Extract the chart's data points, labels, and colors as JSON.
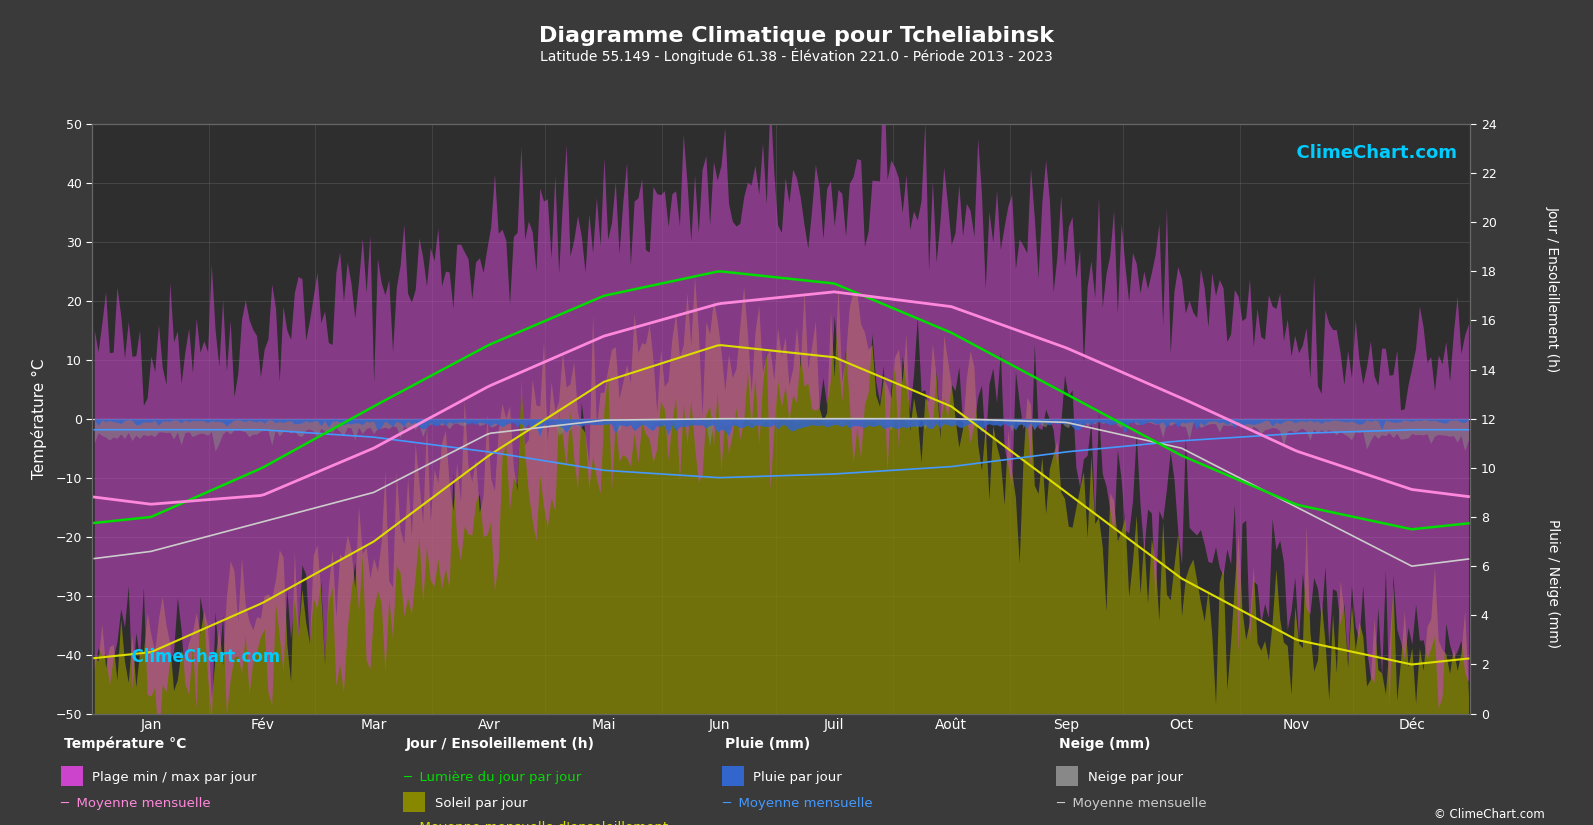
{
  "title": "Diagramme Climatique pour Tcheliabinsk",
  "subtitle": "Latitude 55.149 - Longitude 61.38 - Élévation 221.0 - Période 2013 - 2023",
  "bg_color": "#3a3a3a",
  "plot_bg_color": "#2e2e2e",
  "months": [
    "Jan",
    "Fév",
    "Mar",
    "Avr",
    "Mai",
    "Jun",
    "Juil",
    "Août",
    "Sep",
    "Oct",
    "Nov",
    "Déc"
  ],
  "temp_ylim": [
    -50,
    50
  ],
  "temp_mean_monthly": [
    -14.5,
    -13.0,
    -5.0,
    5.5,
    14.0,
    19.5,
    21.5,
    19.0,
    12.0,
    3.5,
    -5.5,
    -12.0
  ],
  "temp_max_monthly": [
    14.0,
    16.0,
    22.0,
    30.0,
    35.0,
    38.0,
    38.0,
    36.0,
    30.0,
    22.0,
    12.0,
    10.0
  ],
  "temp_min_monthly": [
    -42.0,
    -40.0,
    -32.0,
    -16.0,
    -4.0,
    1.0,
    5.0,
    3.0,
    -4.0,
    -18.0,
    -30.0,
    -38.0
  ],
  "daylight_monthly": [
    8.0,
    10.0,
    12.5,
    15.0,
    17.0,
    18.0,
    17.5,
    15.5,
    13.0,
    10.5,
    8.5,
    7.5
  ],
  "sunshine_monthly": [
    2.5,
    4.5,
    7.0,
    10.5,
    13.5,
    15.0,
    14.5,
    12.5,
    9.0,
    5.5,
    3.0,
    2.0
  ],
  "rain_monthly": [
    1.5,
    1.5,
    2.5,
    4.5,
    7.0,
    8.0,
    7.5,
    6.5,
    4.5,
    3.0,
    2.0,
    1.5
  ],
  "snow_monthly": [
    18.0,
    14.0,
    10.0,
    2.0,
    0.2,
    0.0,
    0.0,
    0.0,
    0.5,
    4.0,
    12.0,
    20.0
  ],
  "days_in_month": [
    31,
    28,
    31,
    30,
    31,
    30,
    31,
    31,
    30,
    31,
    30,
    31
  ],
  "daylight_color": "#00dd00",
  "sunshine_fill_color": "#888800",
  "sunshine_line_color": "#dddd00",
  "temp_range_color": "#cc44cc",
  "temp_mean_color": "#ff88dd",
  "rain_color": "#3366cc",
  "rain_mean_color": "#4499ff",
  "snow_color": "#888888",
  "snow_mean_color": "#cccccc",
  "grid_color": "#666666",
  "text_color": "#ffffff",
  "ylabel_left": "Température °C",
  "ylabel_right_top": "Jour / Ensoleillement (h)",
  "ylabel_right_bot": "Pluie / Neige (mm)"
}
